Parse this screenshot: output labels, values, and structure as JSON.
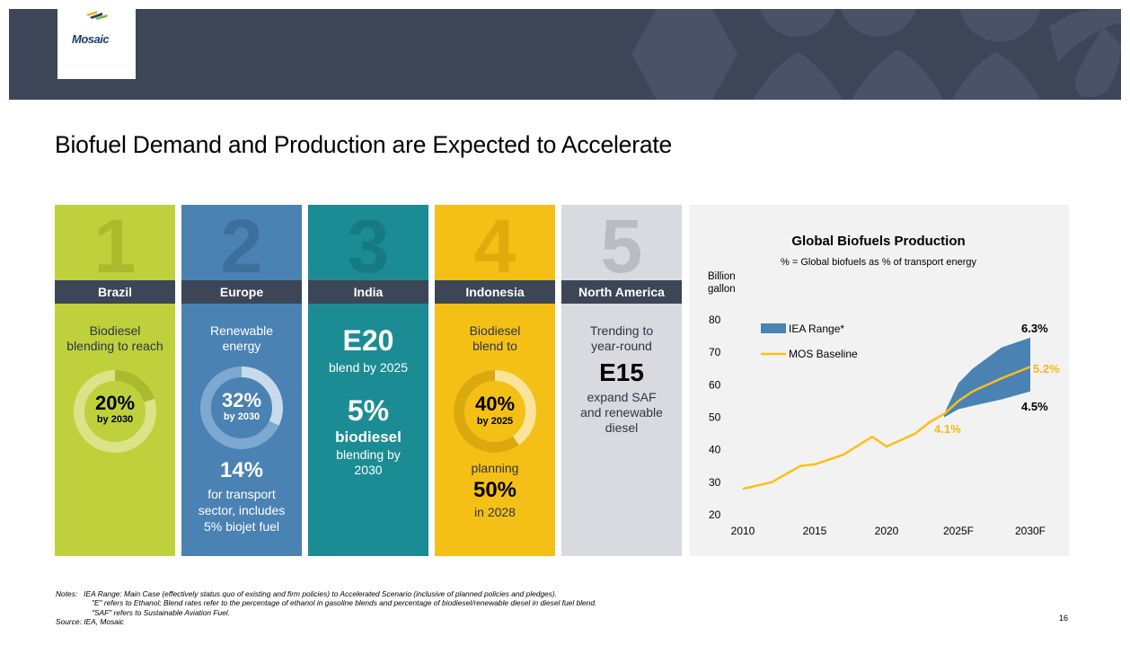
{
  "header": {
    "logo_text": "Mosaic"
  },
  "title": "Biofuel Demand and Production are Expected to Accelerate",
  "columns": {
    "brazil": {
      "num": "1",
      "label": "Brazil",
      "line1": "Biodiesel",
      "line2": "blending to reach",
      "ring_pct": "20%",
      "ring_sub": "by 2030",
      "ring_fraction": 0.2
    },
    "europe": {
      "num": "2",
      "label": "Europe",
      "line1": "Renewable",
      "line2": "energy",
      "ring_pct": "32%",
      "ring_sub": "by 2030",
      "ring_fraction": 0.32,
      "big2": "14%",
      "l3": "for transport",
      "l4": "sector, includes",
      "l5": "5% biojet fuel"
    },
    "india": {
      "num": "3",
      "label": "India",
      "big1": "E20",
      "l1": "blend by 2025",
      "big2": "5%",
      "big3": "biodiesel",
      "l2": "blending by",
      "l3": "2030"
    },
    "indonesia": {
      "num": "4",
      "label": "Indonesia",
      "line1": "Biodiesel",
      "line2": "blend to",
      "ring_pct": "40%",
      "ring_sub": "by 2025",
      "ring_fraction": 0.4,
      "l3": "planning",
      "big2": "50%",
      "l4": "in 2028"
    },
    "north_america": {
      "num": "5",
      "label": "North America",
      "line1": "Trending to",
      "line2": "year-round",
      "big1": "E15",
      "l3": "expand SAF",
      "l4": "and renewable",
      "l5": "diesel"
    }
  },
  "chart_data": {
    "type": "line",
    "title": "Global Biofuels Production",
    "subtitle": "% = Global biofuels as % of transport energy",
    "ylabel_line1": "Billion",
    "ylabel_line2": "gallon",
    "ylim": [
      20,
      80
    ],
    "yticks": [
      "20",
      "30",
      "40",
      "50",
      "60",
      "70",
      "80"
    ],
    "xticks": [
      "2010",
      "2015",
      "2020",
      "2025F",
      "2030F"
    ],
    "xlim": [
      2010,
      2030
    ],
    "legend": [
      "IEA Range*",
      "MOS Baseline"
    ],
    "series": [
      {
        "name": "MOS Baseline",
        "x": [
          2010,
          2012,
          2014,
          2015,
          2017,
          2019,
          2020,
          2022,
          2023,
          2024,
          2025,
          2026,
          2028,
          2030
        ],
        "values": [
          28,
          30,
          35,
          35.5,
          38.5,
          44,
          41,
          45,
          48.5,
          51,
          55,
          58,
          62,
          65.5
        ]
      },
      {
        "name": "IEA Range*",
        "x": [
          2024,
          2025,
          2026,
          2028,
          2030
        ],
        "upper": [
          51,
          60.5,
          65,
          71.5,
          74.5
        ],
        "lower": [
          50,
          52.5,
          53.5,
          55.5,
          58
        ]
      }
    ],
    "annotations": [
      "6.3%",
      "5.2%",
      "4.5%",
      "4.1%"
    ],
    "colors": {
      "band": "#4a82b4",
      "line": "#fdbe15",
      "annot_gold": "#f5b915"
    }
  },
  "notes": {
    "l1": "Notes:   IEA Range: Main Case (effectively status quo of existing and firm policies) to Accelerated Scenario (inclusive of planned policies and pledges).",
    "l2": "\"E\" refers to Ethanol; Blend rates refer to the percentage of ethanol in gasoline blends and percentage of biodiesel/renewable diesel in diesel fuel blend.",
    "l3": "\"SAF\" refers to Sustainable Aviation Fuel.",
    "l4": "Source: IEA, Mosaic"
  },
  "page_number": "16"
}
